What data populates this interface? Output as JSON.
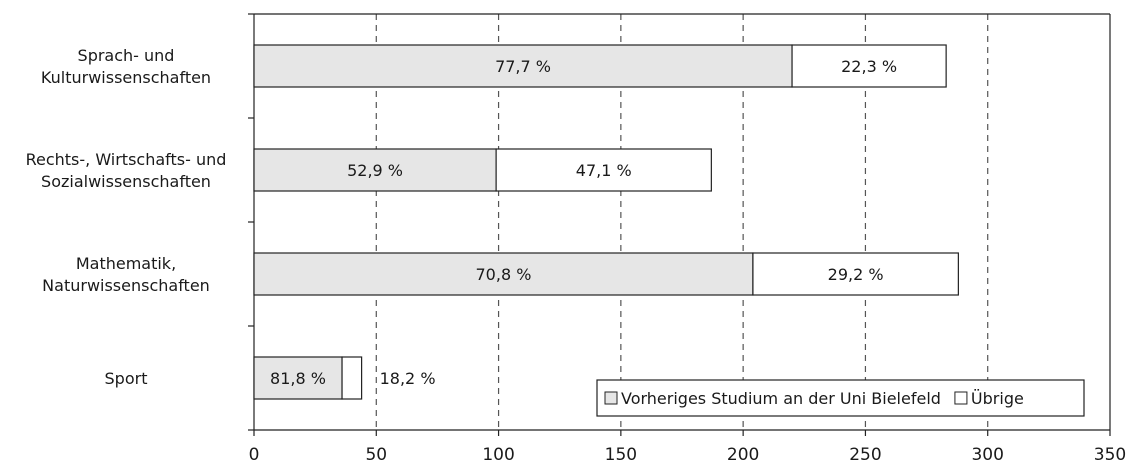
{
  "chart_data": {
    "type": "bar",
    "orientation": "horizontal",
    "stacked": true,
    "categories": [
      [
        "Sprach- und",
        "Kulturwissenschaften"
      ],
      [
        "Rechts-, Wirtschafts- und",
        "Sozialwissenschaften"
      ],
      [
        "Mathematik,",
        "Naturwissenschaften"
      ],
      [
        "Sport"
      ]
    ],
    "series": [
      {
        "name": "Vorheriges Studium an der Uni Bielefeld",
        "color": "#e6e6e6",
        "values": [
          220,
          99,
          204,
          36
        ],
        "labels": [
          "77,7 %",
          "52,9 %",
          "70,8 %",
          "81,8 %"
        ]
      },
      {
        "name": "Übrige",
        "color": "#ffffff",
        "values": [
          63,
          88,
          84,
          8
        ],
        "labels": [
          "22,3 %",
          "47,1 %",
          "29,2 %",
          "18,2 %"
        ]
      }
    ],
    "x_ticks": [
      0,
      50,
      100,
      150,
      200,
      250,
      300,
      350
    ],
    "xlim": [
      0,
      350
    ],
    "grid": "vertical-dashed",
    "legend_position": "bottom-right",
    "title": "",
    "xlabel": "",
    "ylabel": ""
  }
}
